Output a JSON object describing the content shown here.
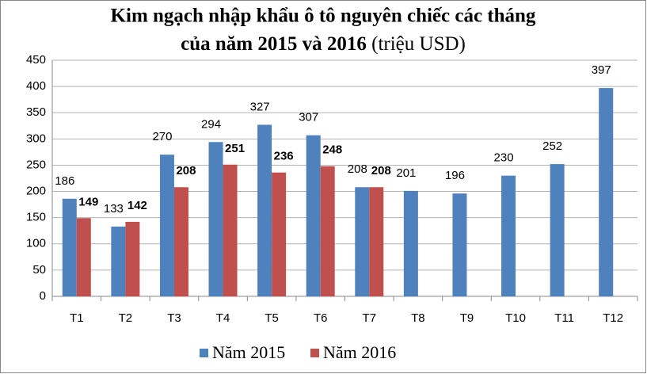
{
  "chart_data": {
    "type": "bar",
    "title": "Kim ngạch nhập khẩu ô tô nguyên chiếc các tháng",
    "title_line2": "của năm 2015 và 2016",
    "unit": "(triệu USD)",
    "categories": [
      "T1",
      "T2",
      "T3",
      "T4",
      "T5",
      "T6",
      "T7",
      "T8",
      "T9",
      "T10",
      "T11",
      "T12"
    ],
    "series": [
      {
        "name": "Năm 2015",
        "color": "#4f81bd",
        "values": [
          186,
          133,
          270,
          294,
          327,
          307,
          208,
          201,
          196,
          230,
          252,
          397
        ]
      },
      {
        "name": "Năm 2016",
        "color": "#c0504d",
        "values": [
          149,
          142,
          208,
          251,
          236,
          248,
          208,
          null,
          null,
          null,
          null,
          null
        ]
      }
    ],
    "ylim": [
      0,
      450
    ],
    "yticks": [
      0,
      50,
      100,
      150,
      200,
      250,
      300,
      350,
      400,
      450
    ],
    "grid": true,
    "legend": "bottom"
  }
}
